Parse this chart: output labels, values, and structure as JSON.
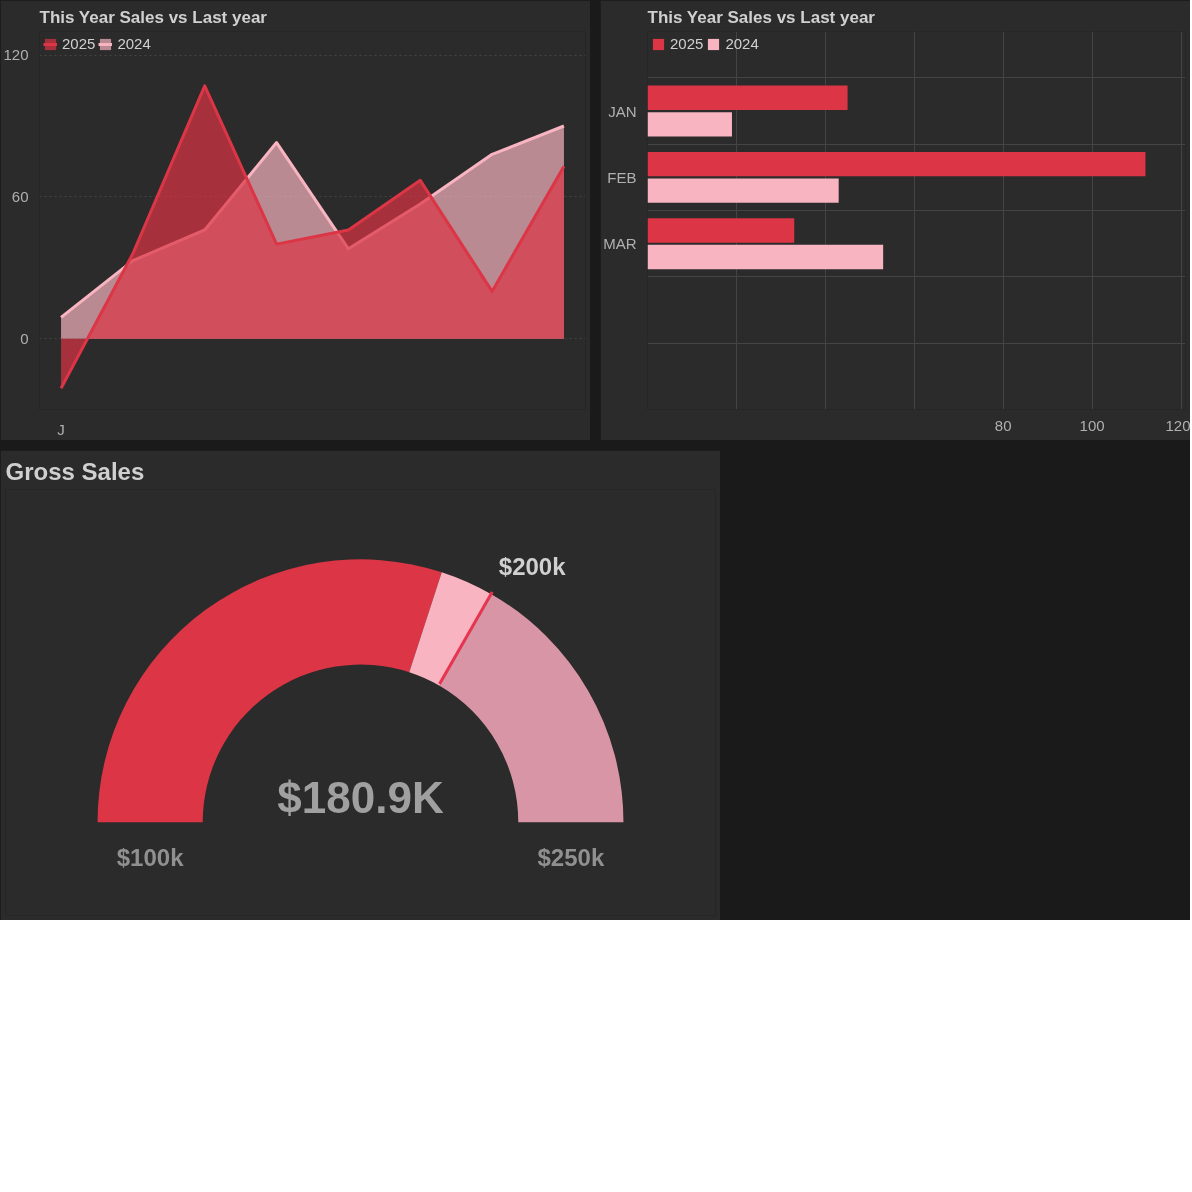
{
  "chart_data": [
    {
      "type": "area",
      "title": "This Year Sales vs Last year",
      "categories": [
        "J",
        null,
        null,
        null,
        null,
        null,
        null,
        null
      ],
      "series": [
        {
          "name": "2025",
          "color": "#dc3545",
          "values": [
            -21,
            36,
            107,
            40,
            46,
            67,
            20,
            73
          ]
        },
        {
          "name": "2024",
          "color": "#f8b4c0",
          "values": [
            9,
            33,
            46,
            83,
            38,
            57,
            78,
            90
          ]
        }
      ],
      "ylim": [
        -30,
        130
      ],
      "yticks": [
        0,
        60,
        120
      ],
      "grid": "y",
      "legend": "top left"
    },
    {
      "type": "bar",
      "orientation": "horizontal",
      "title": "This Year Sales vs Last year",
      "categories": [
        "JAN",
        "FEB",
        "MAR",
        null,
        null
      ],
      "series": [
        {
          "name": "2025",
          "color": "#dc3545",
          "values": [
            45,
            112,
            33,
            null,
            null
          ]
        },
        {
          "name": "2024",
          "color": "#f8b4c0",
          "values": [
            19,
            43,
            53,
            null,
            null
          ]
        }
      ],
      "xlim": [
        0,
        121
      ],
      "xticks": [
        {
          "value": 0,
          "label": null
        },
        {
          "value": 20,
          "label": null
        },
        {
          "value": 40,
          "label": null
        },
        {
          "value": 60,
          "label": null
        },
        80,
        100,
        120
      ],
      "grid": true,
      "legend": "top left"
    },
    {
      "type": "donut",
      "title": "Gross Sales",
      "categories": [
        null,
        null,
        null
      ],
      "values": [
        60,
        6.7,
        33.3
      ],
      "colors": [
        "#dc3545",
        "#f8b4c0",
        "#d895a5"
      ],
      "annotations": [
        "$180.9K",
        "$100k",
        "$200k",
        "$250k"
      ]
    }
  ]
}
